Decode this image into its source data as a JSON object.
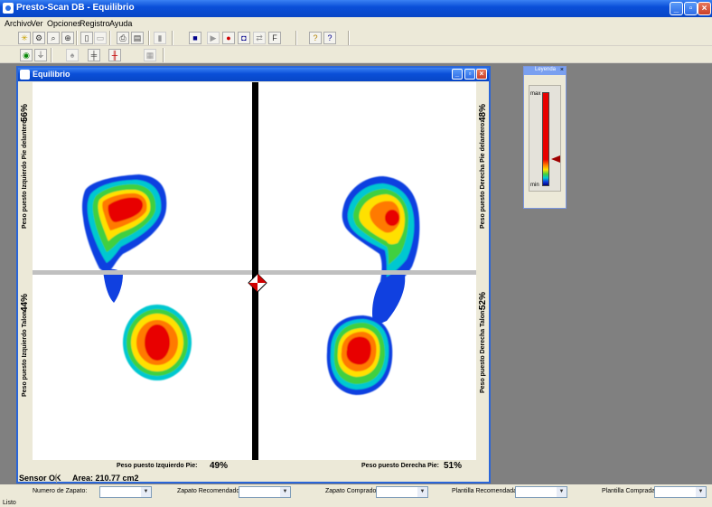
{
  "window": {
    "title": "Presto-Scan DB - Equilibrio"
  },
  "menu": [
    "Archivo",
    "Ver",
    "Opciones",
    "Registro",
    "Ayuda"
  ],
  "toolbar1_icons": [
    "sun-icon",
    "gears-icon",
    "search-icon",
    "magnifier-icon",
    "book-icon",
    "page-icon",
    "print-icon",
    "preview-icon",
    "bar-icon",
    "stop-icon",
    "play-icon",
    "record-icon",
    "camera-icon",
    "export-icon",
    "chart-icon",
    "key-icon",
    "help-icon"
  ],
  "toolbar2_icons": [
    "target-icon",
    "foot-icon",
    "foot-outline-icon",
    "crosshair-icon",
    "balance-icon",
    "grid-icon"
  ],
  "child": {
    "title": "Equilibrio",
    "left_front_label": "Peso puesto Izquierdo Pie delantero:",
    "left_front_pct": "56%",
    "left_heel_label": "Peso puesto Izquierdo Talon:",
    "left_heel_pct": "44%",
    "right_front_label": "Peso puesto Derecha Pie delantero:",
    "right_front_pct": "48%",
    "right_heel_label": "Peso puesto Derecha Talon:",
    "right_heel_pct": "52%",
    "left_foot_label": "Peso puesto Izquierdo Pie:",
    "left_foot_pct": "49%",
    "right_foot_label": "Peso puesto Derecha Pie:",
    "right_foot_pct": "51%",
    "sensor": "Sensor OK",
    "area": "Area: 210.77 cm2"
  },
  "legend": {
    "title": "Leyenda",
    "max": "max",
    "min": "min"
  },
  "combos": [
    {
      "label": "Numero de Zapato:",
      "value": ""
    },
    {
      "label": "Zapato Recomendado:",
      "value": ""
    },
    {
      "label": "Zapato Comprado:",
      "value": ""
    },
    {
      "label": "Plantilla Recomendada:",
      "value": ""
    },
    {
      "label": "Plantilla Comprada:",
      "value": ""
    }
  ],
  "status": "Listo",
  "colors": {
    "titlebar": "#0a4fd8",
    "heat_max": "#e80000",
    "heat_min": "#000080"
  }
}
